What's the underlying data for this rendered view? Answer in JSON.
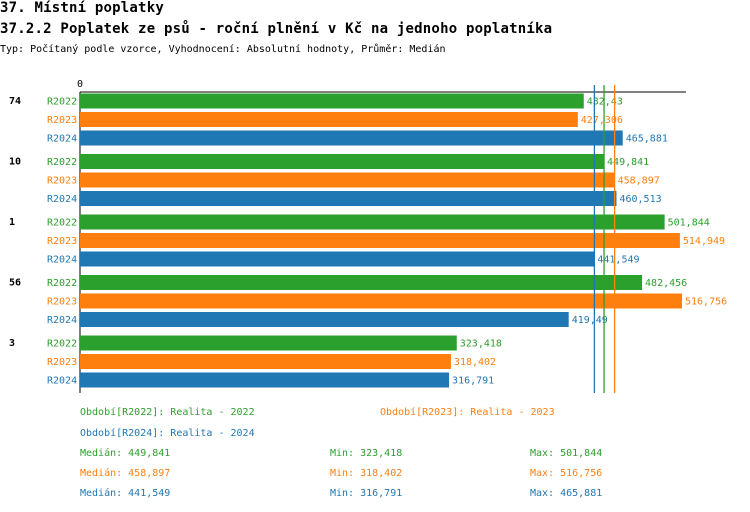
{
  "header": {
    "section_title": "37. Místní poplatky",
    "chart_title": "37.2.2 Poplatek ze psů - roční plnění v Kč na jednoho poplatníka",
    "subtitle": "Typ: Počítaný podle vzorce, Vyhodnocení: Absolutní hodnoty, Průměr: Medián"
  },
  "colors": {
    "R2022": "#2ca02c",
    "R2023": "#ff7f0e",
    "R2024": "#1f77b4"
  },
  "chart_data": {
    "type": "bar",
    "orientation": "horizontal",
    "axis_zero_label": "0",
    "grid": false,
    "groups": [
      {
        "label": "74",
        "bars": [
          {
            "series": "R2022",
            "value": 432.43,
            "label": "432,43"
          },
          {
            "series": "R2023",
            "value": 427.306,
            "label": "427,306"
          },
          {
            "series": "R2024",
            "value": 465.881,
            "label": "465,881"
          }
        ]
      },
      {
        "label": "10",
        "bars": [
          {
            "series": "R2022",
            "value": 449.841,
            "label": "449,841"
          },
          {
            "series": "R2023",
            "value": 458.897,
            "label": "458,897"
          },
          {
            "series": "R2024",
            "value": 460.513,
            "label": "460,513"
          }
        ]
      },
      {
        "label": "1",
        "bars": [
          {
            "series": "R2022",
            "value": 501.844,
            "label": "501,844"
          },
          {
            "series": "R2023",
            "value": 514.949,
            "label": "514,949"
          },
          {
            "series": "R2024",
            "value": 441.549,
            "label": "441,549"
          }
        ]
      },
      {
        "label": "56",
        "bars": [
          {
            "series": "R2022",
            "value": 482.456,
            "label": "482,456"
          },
          {
            "series": "R2023",
            "value": 516.756,
            "label": "516,756"
          },
          {
            "series": "R2024",
            "value": 419.49,
            "label": "419,49"
          }
        ]
      },
      {
        "label": "3",
        "bars": [
          {
            "series": "R2022",
            "value": 323.418,
            "label": "323,418"
          },
          {
            "series": "R2023",
            "value": 318.402,
            "label": "318,402"
          },
          {
            "series": "R2024",
            "value": 316.791,
            "label": "316,791"
          }
        ]
      }
    ],
    "median_lines": [
      {
        "series": "R2022",
        "value": 449.841
      },
      {
        "series": "R2023",
        "value": 458.897
      },
      {
        "series": "R2024",
        "value": 441.549
      }
    ],
    "xlim": [
      0,
      516.756
    ]
  },
  "legend": {
    "r2022": "Období[R2022]: Realita - 2022",
    "r2023": "Období[R2023]: Realita - 2023",
    "r2024": "Období[R2024]: Realita - 2024"
  },
  "stats": [
    {
      "series": "R2022",
      "median": "Medián: 449,841",
      "min": "Min: 323,418",
      "max": "Max: 501,844"
    },
    {
      "series": "R2023",
      "median": "Medián: 458,897",
      "min": "Min: 318,402",
      "max": "Max: 516,756"
    },
    {
      "series": "R2024",
      "median": "Medián: 441,549",
      "min": "Min: 316,791",
      "max": "Max: 465,881"
    }
  ]
}
